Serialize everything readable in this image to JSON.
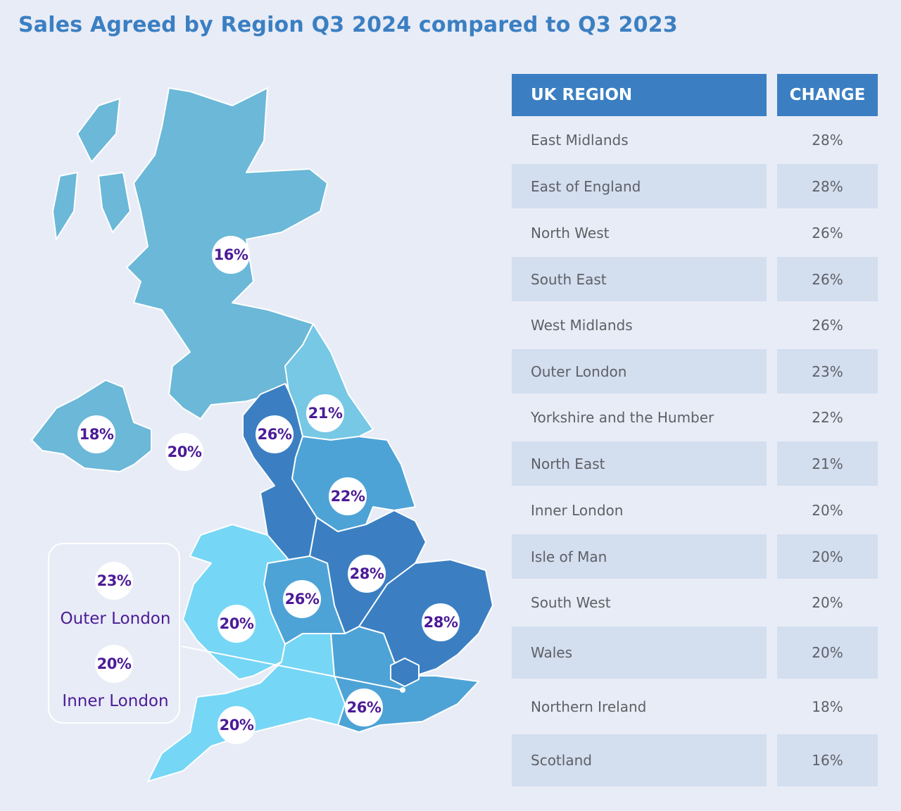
{
  "title": "Sales Agreed by Region Q3 2024 compared to Q3 2023",
  "colors": {
    "title": "#3b7fc2",
    "header": "#3b7fc2",
    "badge_text": "#4b1b97",
    "tier_28": "#3b7fc2",
    "tier_26": "#4ea3d6",
    "tier_22": "#4ea3d6",
    "tier_21": "#76c8e4",
    "tier_20": "#76d6f5",
    "tier_16": "#6bb8d8"
  },
  "map": {
    "regions": [
      {
        "name": "Scotland",
        "label": "16%"
      },
      {
        "name": "Northern Ireland",
        "label": "18%"
      },
      {
        "name": "Isle of Man",
        "label": "20%"
      },
      {
        "name": "North West",
        "label": "26%"
      },
      {
        "name": "North East",
        "label": "21%"
      },
      {
        "name": "Yorkshire and the Humber",
        "label": "22%"
      },
      {
        "name": "East Midlands",
        "label": "28%"
      },
      {
        "name": "West Midlands",
        "label": "26%"
      },
      {
        "name": "Wales",
        "label": "20%"
      },
      {
        "name": "East of England",
        "label": "28%"
      },
      {
        "name": "South East",
        "label": "26%"
      },
      {
        "name": "South West",
        "label": "20%"
      }
    ],
    "london_inset": {
      "outer": {
        "value": "23%",
        "label": "Outer London"
      },
      "inner": {
        "value": "20%",
        "label": "Inner London"
      }
    }
  },
  "table": {
    "headers": [
      "UK REGION",
      "CHANGE"
    ],
    "rows": [
      {
        "region": "East Midlands",
        "change": "28%"
      },
      {
        "region": "East of England",
        "change": "28%"
      },
      {
        "region": "North West",
        "change": "26%"
      },
      {
        "region": "South East",
        "change": "26%"
      },
      {
        "region": "West Midlands",
        "change": "26%"
      },
      {
        "region": "Outer London",
        "change": "23%"
      },
      {
        "region": "Yorkshire and the Humber",
        "change": "22%"
      },
      {
        "region": "North East",
        "change": "21%"
      },
      {
        "region": "Inner London",
        "change": "20%"
      },
      {
        "region": "Isle of Man",
        "change": "20%"
      },
      {
        "region": "South West",
        "change": "20%"
      },
      {
        "region": "Wales",
        "change": "20%"
      },
      {
        "region": "Northern Ireland",
        "change": "18%"
      },
      {
        "region": "Scotland",
        "change": "16%"
      }
    ]
  }
}
